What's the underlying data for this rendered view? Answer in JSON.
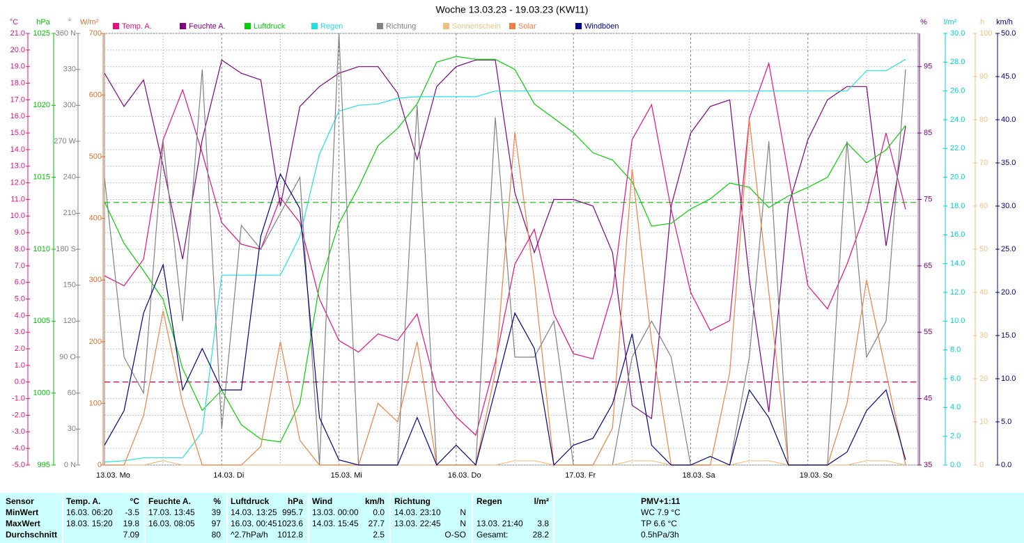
{
  "chart_data": {
    "type": "line",
    "title": "Woche 13.03.23 - 19.03.23 (KW11)",
    "categories": [
      "13.03. Mo",
      null,
      null,
      null,
      null,
      null,
      "14.03. Di",
      null,
      null,
      null,
      null,
      null,
      "15.03. Mi",
      null,
      null,
      null,
      null,
      null,
      "16.03. Do",
      null,
      null,
      null,
      null,
      null,
      "17.03. Fr",
      null,
      null,
      null,
      null,
      null,
      "18.03. Sa",
      null,
      null,
      null,
      null,
      null,
      "19.03. So",
      null,
      null,
      null,
      null,
      null
    ],
    "axes": {
      "temp": {
        "unit": "°C",
        "color": "#e0107f",
        "lim": [
          -5,
          21
        ],
        "ticks": [
          {
            "value": -5,
            "label": "-5.0"
          },
          {
            "value": -4,
            "label": "-4.0"
          },
          {
            "value": -3,
            "label": "-3.0"
          },
          {
            "value": -2,
            "label": "-2.0"
          },
          {
            "value": -1,
            "label": "-1.0"
          },
          {
            "value": 0,
            "label": "0.0"
          },
          {
            "value": 1,
            "label": "1.0"
          },
          {
            "value": 2,
            "label": "2.0"
          },
          {
            "value": 3,
            "label": "3.0"
          },
          {
            "value": 4,
            "label": "4.0"
          },
          {
            "value": 5,
            "label": "5.0"
          },
          {
            "value": 6,
            "label": "6.0"
          },
          {
            "value": 7,
            "label": "7.0"
          },
          {
            "value": 8,
            "label": "8.0"
          },
          {
            "value": 9,
            "label": "9.0"
          },
          {
            "value": 10,
            "label": "10.0"
          },
          {
            "value": 11,
            "label": "11.0"
          },
          {
            "value": 12,
            "label": "12.0"
          },
          {
            "value": 13,
            "label": "13.0"
          },
          {
            "value": 14,
            "label": "14.0"
          },
          {
            "value": 15,
            "label": "15.0"
          },
          {
            "value": 16,
            "label": "16.0"
          },
          {
            "value": 17,
            "label": "17.0"
          },
          {
            "value": 18,
            "label": "18.0"
          },
          {
            "value": 19,
            "label": "19.0"
          },
          {
            "value": 20,
            "label": "20.0"
          },
          {
            "value": 21,
            "label": "21.0"
          }
        ]
      },
      "pressure": {
        "unit": "hPa",
        "color": "#00c000",
        "lim": [
          995,
          1025
        ],
        "ticks": [
          995,
          1000,
          1005,
          1010,
          1015,
          1020,
          1025
        ]
      },
      "direction": {
        "unit": "°",
        "color": "#808080",
        "lim": [
          0,
          360
        ],
        "ticks": [
          {
            "value": 0,
            "label": "0 N"
          },
          30,
          60,
          {
            "value": 90,
            "label": "90 O"
          },
          120,
          150,
          {
            "value": 180,
            "label": "180 S"
          },
          210,
          240,
          {
            "value": 270,
            "label": "270 W"
          },
          300,
          330,
          {
            "value": 360,
            "label": "360 N"
          }
        ]
      },
      "solar": {
        "unit": "W/m²",
        "color": "#e07030",
        "lim": [
          0,
          700
        ],
        "ticks": [
          0,
          100,
          200,
          300,
          400,
          500,
          600,
          700
        ]
      },
      "humidity": {
        "unit": "%",
        "color": "#800080",
        "lim": [
          35,
          100
        ],
        "ticks": [
          35,
          45,
          55,
          65,
          75,
          85,
          95
        ]
      },
      "rain": {
        "unit": "l/m²",
        "color": "#00d0d0",
        "lim": [
          0,
          30
        ],
        "ticks": [
          {
            "value": 0,
            "label": "0.0"
          },
          {
            "value": 2,
            "label": "2.0"
          },
          {
            "value": 4,
            "label": "4.0"
          },
          {
            "value": 6,
            "label": "6.0"
          },
          {
            "value": 8,
            "label": "8.0"
          },
          {
            "value": 10,
            "label": "10.0"
          },
          {
            "value": 12,
            "label": "12.0"
          },
          {
            "value": 14,
            "label": "14.0"
          },
          {
            "value": 16,
            "label": "16.0"
          },
          {
            "value": 18,
            "label": "18.0"
          },
          {
            "value": 20,
            "label": "20.0"
          },
          {
            "value": 22,
            "label": "22.0"
          },
          {
            "value": 24,
            "label": "24.0"
          },
          {
            "value": 26,
            "label": "26.0"
          },
          {
            "value": 28,
            "label": "28.0"
          },
          {
            "value": 30,
            "label": "30.0"
          }
        ]
      },
      "sunshine": {
        "unit": "h",
        "color": "#f0c080",
        "lim": [
          0,
          100
        ],
        "ticks": [
          0,
          10,
          20,
          30,
          40,
          50,
          60,
          70,
          80,
          90,
          100
        ]
      },
      "wind": {
        "unit": "km/h",
        "color": "#000080",
        "lim": [
          0,
          50
        ],
        "ticks": [
          {
            "value": 0,
            "label": "0.0"
          },
          {
            "value": 5,
            "label": "5.0"
          },
          {
            "value": 10,
            "label": "10.0"
          },
          {
            "value": 15,
            "label": "15.0"
          },
          {
            "value": 20,
            "label": "20.0"
          },
          {
            "value": 25,
            "label": "25.0"
          },
          {
            "value": 30,
            "label": "30.0"
          },
          {
            "value": 35,
            "label": "35.0"
          },
          {
            "value": 40,
            "label": "40.0"
          },
          {
            "value": 45,
            "label": "45.0"
          },
          {
            "value": 50,
            "label": "50.0"
          }
        ]
      }
    },
    "reference_lines": [
      {
        "axis": "temp",
        "value": 0,
        "color": "#c00060"
      },
      {
        "axis": "pressure",
        "value": 1013.25,
        "color": "#00c000"
      }
    ],
    "grid": true,
    "series": [
      {
        "name": "Temp. A.",
        "color": "#e0107f",
        "axis": "temp",
        "values": [
          6.4,
          5.8,
          7.4,
          14.6,
          17.6,
          13.8,
          9.6,
          8.3,
          8.0,
          11.1,
          9.6,
          5.0,
          2.5,
          1.8,
          2.9,
          2.5,
          4.1,
          -0.5,
          -2.1,
          -3.2,
          1.2,
          7.1,
          9.2,
          4.1,
          1.7,
          1.4,
          5.4,
          14.6,
          16.7,
          10.4,
          5.4,
          3.1,
          3.7,
          15.9,
          19.2,
          12.5,
          5.8,
          4.4,
          7.1,
          10.4,
          15.0,
          10.4
        ]
      },
      {
        "name": "Feuchte A.",
        "color": "#800080",
        "axis": "humidity",
        "values": [
          94,
          89,
          93,
          80,
          66,
          84,
          96,
          94,
          93,
          74,
          89,
          92,
          94,
          95,
          95,
          91,
          81,
          92,
          95,
          96,
          96,
          76,
          67,
          75,
          75,
          74,
          67,
          44,
          42,
          74,
          85,
          89,
          90,
          63,
          43,
          74,
          84,
          90,
          92,
          92,
          68,
          86
        ]
      },
      {
        "name": "Luftdruck",
        "color": "#00d000",
        "axis": "pressure",
        "values": [
          1013.3,
          1010.4,
          1008.5,
          1006.5,
          1001.7,
          998.8,
          1000.2,
          997.8,
          996.8,
          996.6,
          999.3,
          1007.5,
          1011.8,
          1014.3,
          1017.2,
          1018.4,
          1020.1,
          1023.0,
          1023.4,
          1023.2,
          1023.2,
          1022.5,
          1020.1,
          1019.1,
          1018.1,
          1016.7,
          1016.2,
          1014.7,
          1011.6,
          1011.8,
          1012.8,
          1013.5,
          1014.6,
          1014.3,
          1012.9,
          1013.7,
          1014.3,
          1015.0,
          1017.4,
          1016.0,
          1016.9,
          1018.6
        ]
      },
      {
        "name": "Regen",
        "color": "#20e0e0",
        "axis": "rain",
        "values": [
          0.2,
          0.3,
          0.5,
          0.5,
          0.5,
          2.3,
          13.2,
          13.2,
          13.2,
          13.2,
          15.9,
          21.6,
          24.6,
          25.0,
          25.1,
          25.5,
          25.6,
          25.6,
          25.6,
          25.6,
          26.0,
          26.0,
          26.0,
          26.0,
          26.0,
          26.0,
          26.0,
          26.0,
          26.0,
          26.0,
          26.0,
          26.0,
          26.0,
          26.0,
          26.0,
          26.0,
          26.0,
          26.0,
          26.0,
          27.4,
          27.4,
          28.2
        ]
      },
      {
        "name": "Richtung",
        "color": "#808080",
        "axis": "direction",
        "values": [
          240,
          90,
          60,
          270,
          120,
          330,
          30,
          200,
          180,
          210,
          240,
          0,
          360,
          0,
          0,
          0,
          300,
          0,
          0,
          0,
          290,
          90,
          90,
          120,
          0,
          0,
          0,
          90,
          120,
          90,
          0,
          0,
          0,
          90,
          270,
          0,
          0,
          0,
          270,
          90,
          120,
          330
        ]
      },
      {
        "name": "Sonnenschein",
        "color": "#f0c080",
        "axis": "sunshine",
        "values": [
          0,
          0,
          0,
          1,
          0,
          0,
          0,
          0,
          0,
          0,
          0,
          0,
          0,
          0,
          0,
          0,
          0,
          0,
          0,
          0,
          0,
          1,
          1,
          0,
          0,
          0,
          0,
          1,
          1,
          0,
          0,
          0,
          0,
          1,
          1,
          0,
          0,
          0,
          0,
          1,
          1,
          0
        ]
      },
      {
        "name": "Solar",
        "color": "#f08040",
        "axis": "solar",
        "values": [
          0,
          0,
          80,
          250,
          100,
          0,
          0,
          0,
          30,
          200,
          40,
          0,
          0,
          0,
          100,
          70,
          200,
          0,
          0,
          0,
          150,
          540,
          300,
          0,
          0,
          0,
          60,
          480,
          200,
          0,
          0,
          0,
          150,
          560,
          280,
          0,
          0,
          0,
          100,
          300,
          150,
          0
        ]
      },
      {
        "name": "Windböen",
        "color": "#000080",
        "axis": "wind",
        "values": [
          2.3,
          6.3,
          17.6,
          23.2,
          8.7,
          13.5,
          8.7,
          8.7,
          26.5,
          33.7,
          29.7,
          5.5,
          0.6,
          0,
          0,
          0,
          5.5,
          0,
          2.3,
          0,
          8.7,
          17.6,
          13.5,
          0,
          2.3,
          3.1,
          7.1,
          15.2,
          2.3,
          0,
          0,
          1.0,
          0,
          8.7,
          5.5,
          0,
          0,
          0,
          1.5,
          6.3,
          8.7,
          0.6
        ]
      }
    ]
  },
  "table": {
    "header": [
      "Sensor",
      "Temp. A.",
      "°C",
      "Feuchte A.",
      "%",
      "Luftdruck",
      "hPa",
      "Wind",
      "km/h",
      "Richtung",
      null,
      "Regen",
      "l/m²",
      "PMV+1:11"
    ],
    "rows": [
      [
        "MinWert",
        "16.03. 06:20",
        "-3.5",
        "17.03. 13:45",
        "39",
        "14.03. 13:25",
        "995.7",
        "13.03. 00:00",
        "0.0",
        "14.03. 23:10",
        "N",
        null,
        null,
        "WC 7.9 °C"
      ],
      [
        "MaxWert",
        "18.03. 15:20",
        "19.8",
        "16.03. 08:05",
        "97",
        "16.03. 00:45",
        "1023.6",
        "14.03. 15:45",
        "27.7",
        "13.03. 22:45",
        "N",
        "13.03. 21:40",
        "3.8",
        "TP 6.6 °C"
      ],
      [
        "Durchschnitt",
        null,
        "7.09",
        null,
        "80",
        "^2.7hPa/h",
        "1012.8",
        null,
        "2.5",
        null,
        "O-SO",
        "Gesamt:",
        "28.2",
        "0.5hPa/3h"
      ]
    ]
  }
}
